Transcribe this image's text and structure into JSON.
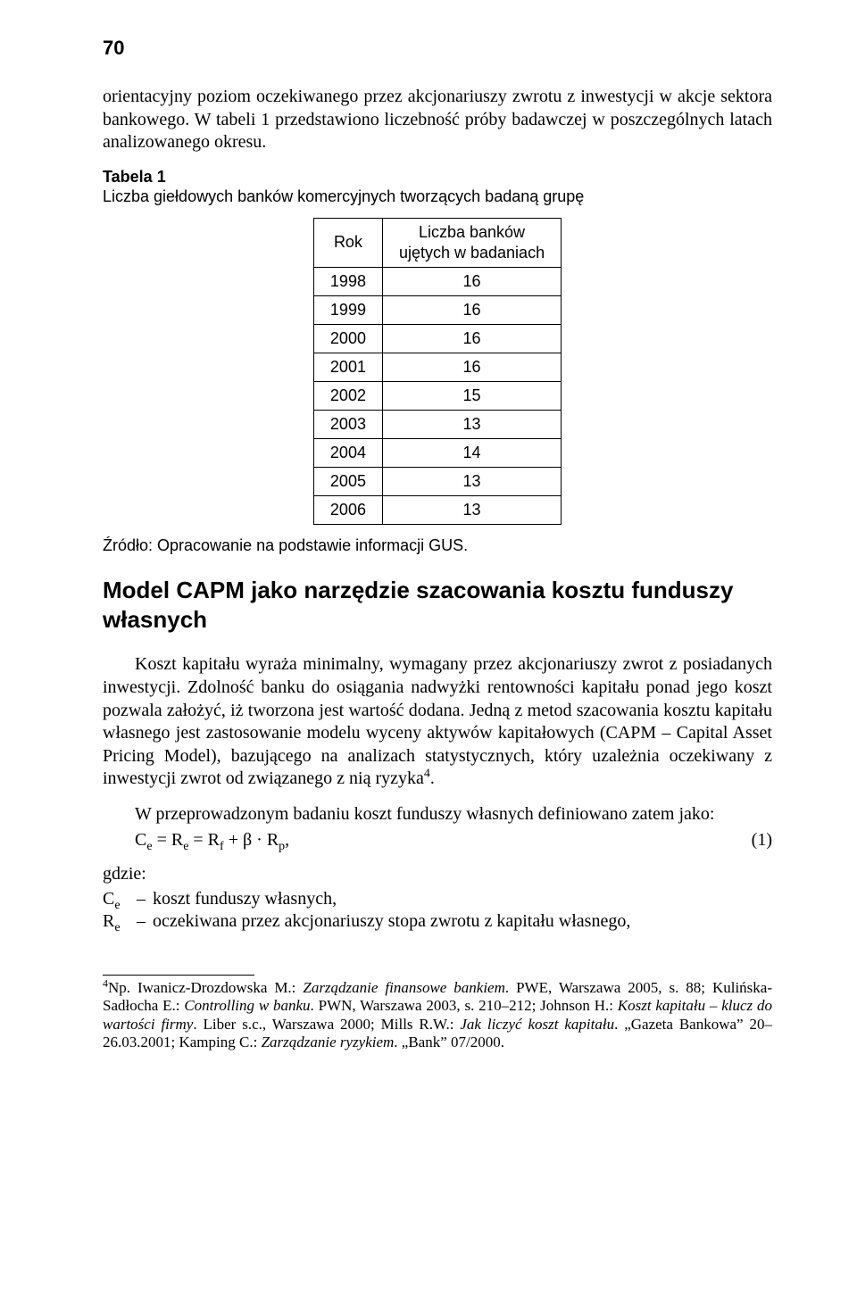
{
  "page_number": "70",
  "intro_paragraph": "orientacyjny poziom oczekiwanego przez akcjonariuszy zwrotu z inwestycji w akcje sektora bankowego. W tabeli 1 przedstawiono liczebność próby badawczej w poszczególnych latach analizowanego okresu.",
  "table_caption_bold": "Tabela 1",
  "table_caption_rest": "Liczba giełdowych banków komercyjnych tworzących badaną grupę",
  "table": {
    "col1": "Rok",
    "col2_line1": "Liczba banków",
    "col2_line2": "ujętych w badaniach",
    "rows": [
      {
        "year": "1998",
        "count": "16"
      },
      {
        "year": "1999",
        "count": "16"
      },
      {
        "year": "2000",
        "count": "16"
      },
      {
        "year": "2001",
        "count": "16"
      },
      {
        "year": "2002",
        "count": "15"
      },
      {
        "year": "2003",
        "count": "13"
      },
      {
        "year": "2004",
        "count": "14"
      },
      {
        "year": "2005",
        "count": "13"
      },
      {
        "year": "2006",
        "count": "13"
      }
    ]
  },
  "source_line": "Źródło: Opracowanie na podstawie informacji GUS.",
  "section_heading": "Model CAPM jako narzędzie szacowania kosztu funduszy własnych",
  "body_para1_pre_sup": "Koszt kapitału wyraża minimalny, wymagany przez akcjonariuszy zwrot z posiadanych inwestycji. Zdolność banku do osiągania nadwyżki rentowności kapitału ponad jego koszt pozwala założyć, iż tworzona jest wartość dodana. Jedną z metod szacowania kosztu kapitału własnego jest zastosowanie modelu wyceny aktywów kapitałowych (CAPM – Capital Asset Pricing Model), bazującego na analizach statystycznych, który uzależnia oczekiwany z inwestycji zwrot od związanego z nią ryzyka",
  "body_para1_sup": "4",
  "body_para1_post_sup": ".",
  "body_para2": "W przeprowadzonym badaniu koszt funduszy własnych definiowano zatem jako:",
  "formula": {
    "text_plain": "Ce = Re = Rf + β · Rp,",
    "number": "(1)"
  },
  "defs_intro": "gdzie:",
  "defs": [
    {
      "sym_html": "C<sub>e</sub>",
      "text": "koszt funduszy własnych,"
    },
    {
      "sym_html": "R<sub>e</sub>",
      "text": "oczekiwana przez akcjonariuszy stopa zwrotu z kapitału własnego,"
    }
  ],
  "footnote_sup": "4",
  "footnote_html": "Np. Iwanicz-Drozdowska M.: <i>Zarządzanie finansowe bankiem</i>. PWE, Warszawa 2005, s. 88; Kulińska-Sadłocha E.: <i>Controlling w banku</i>. PWN,  Warszawa 2003, s. 210–212; Johnson H.: <i>Koszt kapitału – klucz do wartości firmy</i>. Liber s.c., Warszawa 2000; Mills R.W.: <i>Jak liczyć koszt kapitału</i>. „Gazeta Bankowa” 20–26.03.2001; Kamping C.: <i>Zarządzanie ryzykiem</i>. „Bank” 07/2000."
}
